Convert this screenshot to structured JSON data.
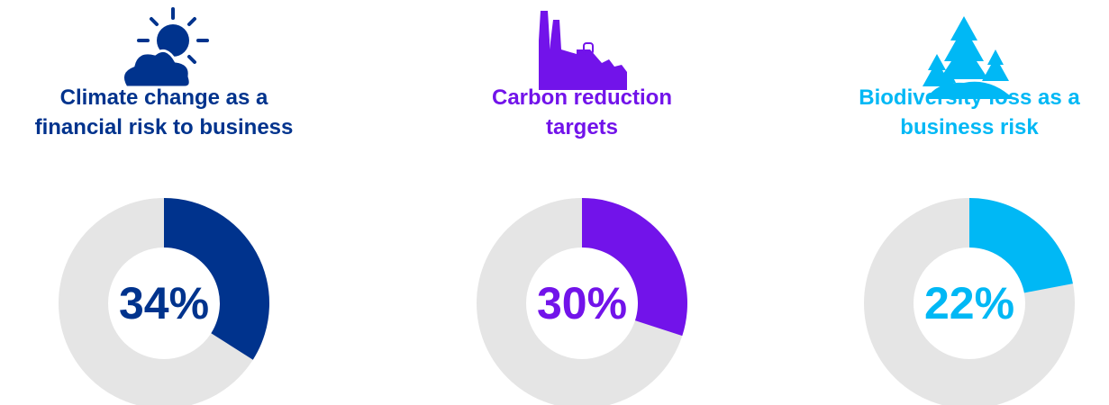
{
  "chart_data": [
    {
      "type": "donut",
      "title": [
        "Climate change as a",
        "financial risk to business"
      ],
      "values": [
        34
      ],
      "value_labels": [
        "34%"
      ],
      "color": "#00338d",
      "background": "#e5e5e5"
    },
    {
      "type": "donut",
      "title": [
        "Carbon reduction",
        "targets"
      ],
      "values": [
        30
      ],
      "value_labels": [
        "30%"
      ],
      "color": "#7213ea",
      "background": "#e5e5e5"
    },
    {
      "type": "donut",
      "title": [
        "Biodiversity loss as a",
        "business risk"
      ],
      "values": [
        22
      ],
      "value_labels": [
        "22%"
      ],
      "color": "#00b8f5",
      "background": "#e5e5e5"
    }
  ]
}
